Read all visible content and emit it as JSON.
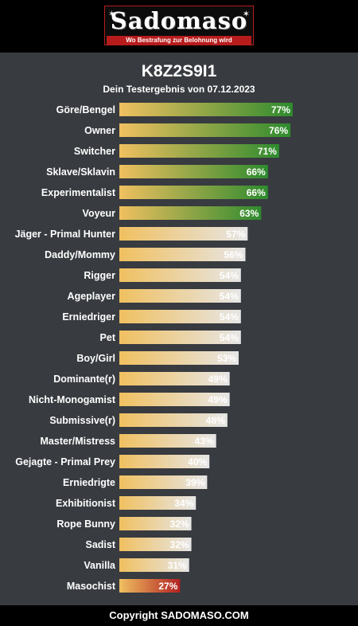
{
  "header": {
    "logo_text": "Sadomaso",
    "logo_tagline": "Wo Bestrafung zur Belohnung wird"
  },
  "result": {
    "title": "K8Z2S9I1",
    "subtitle": "Dein Testergebnis von 07.12.2023"
  },
  "colors": {
    "bar_start": "#f0c060",
    "bar_high_end": "#2e8b2e",
    "bar_mid_end": "#e6e6e6",
    "bar_low_end": "#b22222"
  },
  "chart_data": {
    "type": "bar",
    "orientation": "horizontal",
    "title": "K8Z2S9I1",
    "subtitle": "Dein Testergebnis von 07.12.2023",
    "xlim": [
      0,
      100
    ],
    "unit": "%",
    "categories": [
      "Göre/Bengel",
      "Owner",
      "Switcher",
      "Sklave/Sklavin",
      "Experimentalist",
      "Voyeur",
      "Jäger - Primal Hunter",
      "Daddy/Mommy",
      "Rigger",
      "Ageplayer",
      "Erniedriger",
      "Pet",
      "Boy/Girl",
      "Dominante(r)",
      "Nicht-Monogamist",
      "Submissive(r)",
      "Master/Mistress",
      "Gejagte - Primal Prey",
      "Erniedrigte",
      "Exhibitionist",
      "Rope Bunny",
      "Sadist",
      "Vanilla",
      "Masochist"
    ],
    "values": [
      77,
      76,
      71,
      66,
      66,
      63,
      57,
      56,
      54,
      54,
      54,
      54,
      53,
      49,
      49,
      48,
      43,
      40,
      39,
      34,
      32,
      32,
      31,
      27
    ],
    "data_labels": [
      "77%",
      "76%",
      "71%",
      "66%",
      "66%",
      "63%",
      "57%",
      "56%",
      "54%",
      "54%",
      "54%",
      "54%",
      "53%",
      "49%",
      "49%",
      "48%",
      "43%",
      "40%",
      "39%",
      "34%",
      "32%",
      "32%",
      "31%",
      "27%"
    ],
    "bar_tone": [
      "high",
      "high",
      "high",
      "high",
      "high",
      "high",
      "mid",
      "mid",
      "mid",
      "mid",
      "mid",
      "mid",
      "mid",
      "mid",
      "mid",
      "mid",
      "mid",
      "mid",
      "mid",
      "mid",
      "mid",
      "mid",
      "mid",
      "low"
    ]
  },
  "footer": {
    "copyright": "Copyright SADOMASO.COM"
  }
}
